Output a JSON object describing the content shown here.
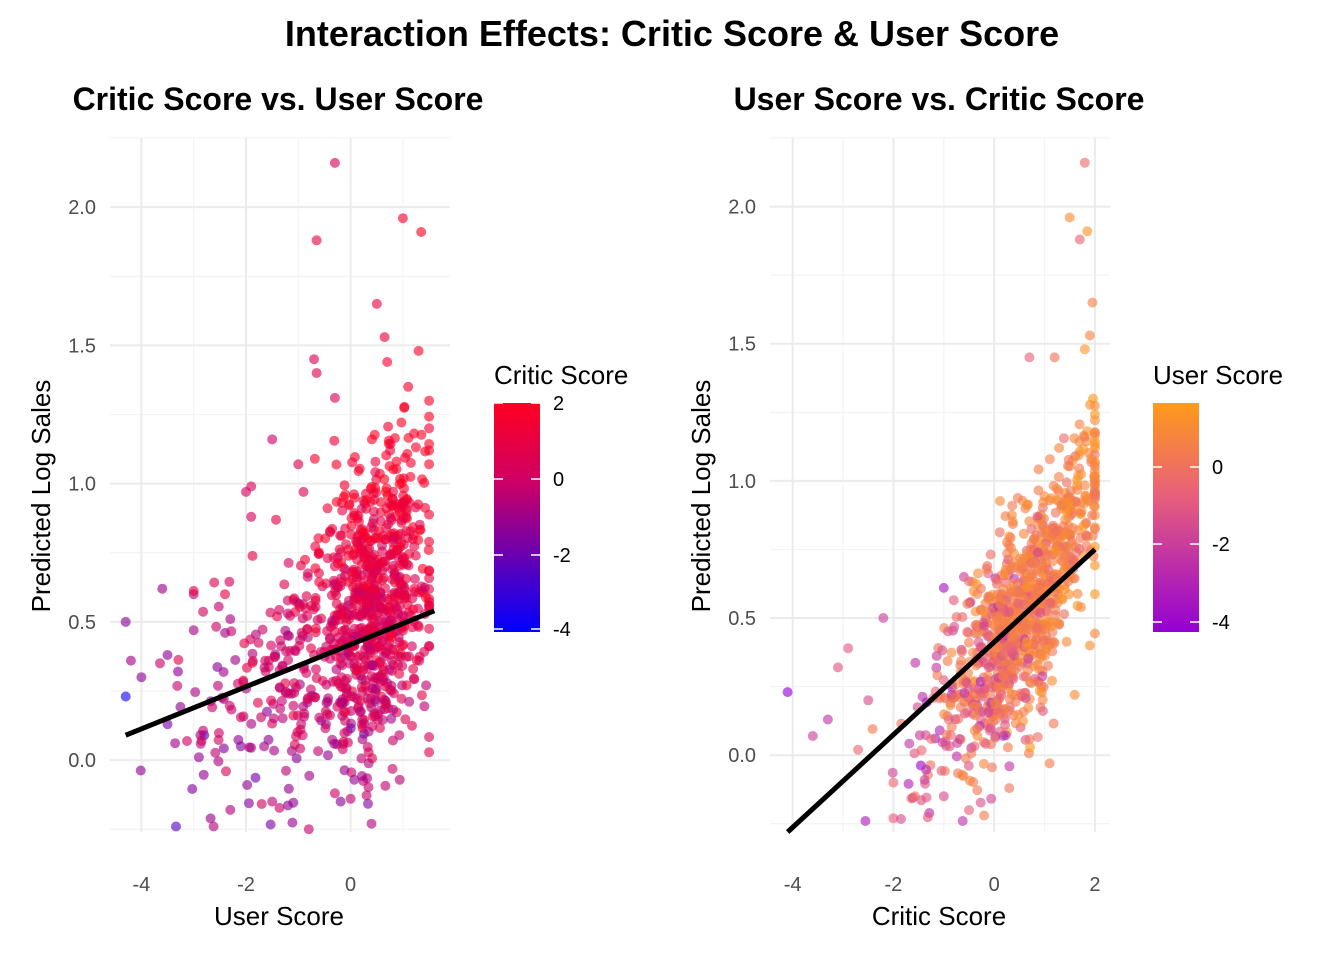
{
  "title": "Interaction Effects: Critic Score & User Score",
  "colors": {
    "left_low": "#0000ff",
    "left_mid": "#cc0066",
    "left_high": "#ff0022",
    "right_low": "#9400d3",
    "right_mid": "#e8607a",
    "right_high": "#ff9a1a",
    "fit_line": "#000000",
    "grid": "#ebebeb"
  },
  "chart_data": [
    {
      "type": "scatter",
      "title": "Critic Score vs. User Score",
      "xlabel": "User Score",
      "ylabel": "Predicted Log Sales",
      "xlim": [
        -4.6,
        1.9
      ],
      "ylim": [
        -0.26,
        2.25
      ],
      "xticks": [
        "-4",
        "-2",
        "0"
      ],
      "yticks": [
        "0.0",
        "0.5",
        "1.0",
        "1.5",
        "2.0"
      ],
      "grid": true,
      "legend": {
        "title": "Critic Score",
        "placement": "right",
        "type": "gradient",
        "range": [
          -4.3,
          2.0
        ],
        "ticks": [
          "2",
          "0",
          "-2",
          "-4"
        ]
      },
      "fit_line": {
        "x": [
          -4.3,
          1.6
        ],
        "y": [
          0.09,
          0.54
        ]
      },
      "points_note": "~1000 points; color = Critic Score",
      "points": [
        [
          -4.3,
          0.5,
          -1.5
        ],
        [
          -4.2,
          0.36,
          -1.0
        ],
        [
          -4.0,
          0.3,
          -1.4
        ],
        [
          -4.3,
          0.23,
          -3.9
        ],
        [
          -3.6,
          0.62,
          -1.2
        ],
        [
          -3.5,
          0.38,
          -1.5
        ],
        [
          -3.3,
          0.32,
          -1.6
        ],
        [
          -3.5,
          0.13,
          -1.9
        ],
        [
          -3.0,
          0.6,
          -0.6
        ],
        [
          -3.0,
          0.47,
          -1.0
        ],
        [
          -2.9,
          0.01,
          -1.3
        ],
        [
          -2.8,
          0.09,
          -3.1
        ],
        [
          -2.4,
          0.46,
          -1.1
        ],
        [
          -2.3,
          0.51,
          -0.9
        ],
        [
          -2.1,
          0.05,
          -1.6
        ],
        [
          -1.9,
          0.99,
          0.4
        ],
        [
          -2.0,
          0.97,
          0.1
        ],
        [
          -1.9,
          0.88,
          0.2
        ],
        [
          -1.5,
          1.16,
          0.0
        ],
        [
          -1.0,
          1.07,
          0.5
        ],
        [
          -0.9,
          0.97,
          0.4
        ],
        [
          -0.7,
          1.45,
          0.4
        ],
        [
          -0.65,
          1.4,
          0.6
        ],
        [
          -0.65,
          1.88,
          0.9
        ],
        [
          -0.3,
          2.16,
          0.3
        ],
        [
          -0.3,
          1.31,
          0.3
        ],
        [
          0.5,
          1.65,
          1.3
        ],
        [
          0.65,
          1.53,
          1.2
        ],
        [
          1.0,
          1.96,
          1.7
        ],
        [
          1.35,
          1.91,
          1.9
        ],
        [
          1.3,
          1.48,
          2.0
        ],
        [
          1.1,
          1.35,
          1.6
        ],
        [
          0.7,
          1.44,
          1.5
        ],
        [
          1.5,
          1.2,
          1.5
        ],
        [
          -0.8,
          -0.25,
          -0.3
        ],
        [
          0.4,
          -0.23,
          -0.7
        ],
        [
          -1.5,
          -0.15,
          -0.5
        ],
        [
          -2.3,
          -0.18,
          -0.8
        ],
        [
          0.0,
          -0.14,
          -0.4
        ],
        [
          -0.3,
          -0.12,
          -0.1
        ]
      ]
    },
    {
      "type": "scatter",
      "title": "User Score vs. Critic Score",
      "xlabel": "Critic Score",
      "ylabel": "Predicted Log Sales",
      "xlim": [
        -4.45,
        2.3
      ],
      "ylim": [
        -0.28,
        2.25
      ],
      "xticks": [
        "-4",
        "-2",
        "0",
        "2"
      ],
      "yticks": [
        "0.0",
        "0.5",
        "1.0",
        "1.5",
        "2.0"
      ],
      "grid": true,
      "legend": {
        "title": "User Score",
        "placement": "right",
        "type": "gradient",
        "range": [
          -4.3,
          1.6
        ],
        "ticks": [
          "0",
          "-2",
          "-4"
        ]
      },
      "fit_line": {
        "x": [
          -4.1,
          2.0
        ],
        "y": [
          -0.28,
          0.75
        ]
      },
      "points_note": "~1000 points; color = User Score",
      "points": [
        [
          -4.1,
          0.23,
          -4.3
        ],
        [
          -3.6,
          0.07,
          -2.0
        ],
        [
          -3.3,
          0.13,
          -2.5
        ],
        [
          -3.1,
          0.32,
          -1.2
        ],
        [
          -2.9,
          0.39,
          -1.0
        ],
        [
          -2.7,
          0.02,
          -0.6
        ],
        [
          -2.5,
          0.2,
          -1.5
        ],
        [
          -2.2,
          0.5,
          -2.1
        ],
        [
          -2.0,
          -0.1,
          -0.5
        ],
        [
          -1.0,
          0.61,
          -3.5
        ],
        [
          -0.6,
          0.65,
          -2.0
        ],
        [
          0.7,
          1.45,
          -0.7
        ],
        [
          1.2,
          1.45,
          0.1
        ],
        [
          1.5,
          1.96,
          1.0
        ],
        [
          1.7,
          1.88,
          -0.6
        ],
        [
          1.8,
          2.16,
          -0.3
        ],
        [
          1.85,
          1.91,
          1.35
        ],
        [
          1.95,
          1.65,
          0.5
        ],
        [
          1.9,
          1.53,
          0.65
        ],
        [
          1.8,
          1.48,
          1.3
        ],
        [
          -0.5,
          -0.2,
          -0.8
        ],
        [
          -0.2,
          -0.22,
          0.4
        ],
        [
          -1.0,
          -0.15,
          -1.5
        ],
        [
          -2.0,
          -0.23,
          -0.8
        ],
        [
          0.3,
          -0.12,
          0.0
        ],
        [
          1.1,
          -0.03,
          0.4
        ],
        [
          1.6,
          0.22,
          0.9
        ],
        [
          1.9,
          0.4,
          1.1
        ]
      ]
    }
  ]
}
